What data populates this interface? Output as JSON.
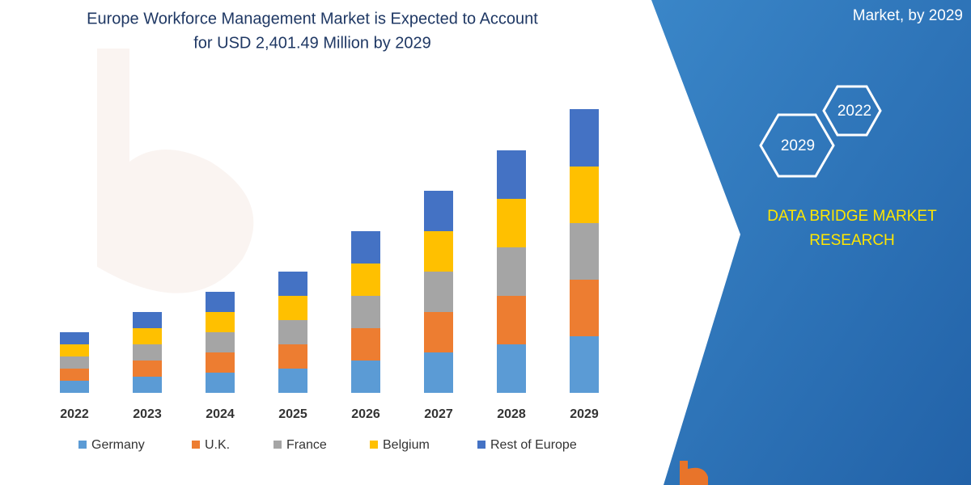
{
  "chart_data": {
    "type": "stacked-bar",
    "title": [
      "Europe Workforce Management Market is Expected to Account",
      "for USD 2,401.49 Million by 2029"
    ],
    "categories": [
      "2022",
      "2023",
      "2024",
      "2025",
      "2026",
      "2027",
      "2028",
      "2029"
    ],
    "series": [
      {
        "name": "Germany",
        "color": "#5b9bd5",
        "values": [
          15,
          20,
          25,
          30,
          40,
          50,
          60,
          70
        ]
      },
      {
        "name": "U.K.",
        "color": "#ed7d31",
        "values": [
          15,
          20,
          25,
          30,
          40,
          50,
          60,
          70
        ]
      },
      {
        "name": "France",
        "color": "#a5a5a5",
        "values": [
          15,
          20,
          25,
          30,
          40,
          50,
          60,
          70
        ]
      },
      {
        "name": "Belgium",
        "color": "#ffc000",
        "values": [
          15,
          20,
          25,
          30,
          40,
          50,
          60,
          70
        ]
      },
      {
        "name": "Rest of Europe",
        "color": "#4472c4",
        "values": [
          15,
          20,
          25,
          30,
          40,
          50,
          60,
          71
        ]
      }
    ],
    "ylim": [
      0,
      360
    ],
    "grid": false,
    "legend": "bottom"
  },
  "side_panel": {
    "heading": "Market, by 2029",
    "hex_labels": [
      "2022",
      "2029"
    ],
    "brand": [
      "DATA BRIDGE MARKET",
      "RESEARCH"
    ]
  }
}
